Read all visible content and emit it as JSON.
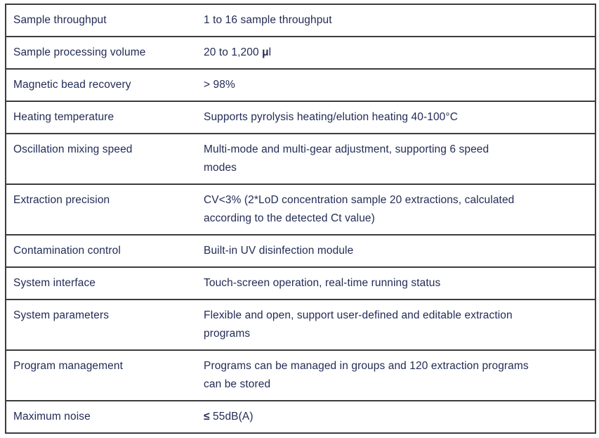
{
  "table": {
    "rows": [
      {
        "label": "Sample throughput",
        "value": "1 to 16 sample throughput"
      },
      {
        "label": "Sample processing volume",
        "value_prefix": "20 to 1,200 ",
        "value_bold": "μ",
        "value_suffix": "l"
      },
      {
        "label": "Magnetic bead recovery",
        "value": "> 98%"
      },
      {
        "label": "Heating temperature",
        "value": "Supports pyrolysis heating/elution heating 40-100°C"
      },
      {
        "label": "Oscillation mixing speed",
        "lines": [
          "Multi-mode and multi-gear adjustment, supporting 6 speed",
          "modes"
        ]
      },
      {
        "label": "Extraction precision",
        "lines": [
          "CV<3% (2*LoD concentration sample 20 extractions, calculated",
          "according to the detected Ct value)"
        ]
      },
      {
        "label": "Contamination control",
        "value": "Built-in UV disinfection module"
      },
      {
        "label": "System interface",
        "value": "Touch-screen operation, real-time running status"
      },
      {
        "label": "System parameters",
        "lines": [
          "Flexible and open, support user-defined and editable extraction",
          "programs"
        ]
      },
      {
        "label": "Program management",
        "lines": [
          "Programs can be managed in groups and 120 extraction programs",
          "can be stored"
        ]
      },
      {
        "label": "Maximum noise",
        "value_bold": "≤",
        "value_suffix": " 55dB(A)"
      }
    ]
  },
  "colors": {
    "text": "#232c56",
    "border": "#3c3c3c",
    "background": "#ffffff"
  }
}
